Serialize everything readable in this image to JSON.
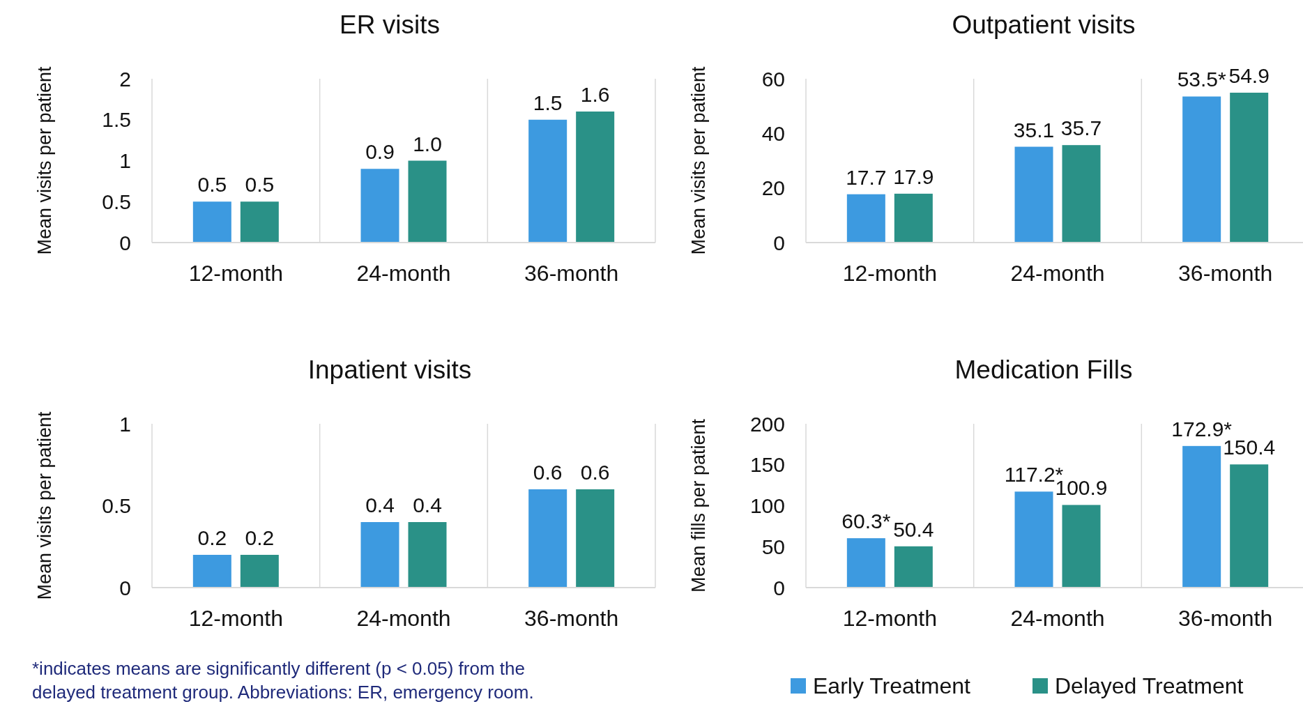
{
  "chart_data": [
    {
      "type": "bar",
      "title": "ER visits",
      "ylabel": "Mean visits per patient",
      "categories": [
        "12-month",
        "24-month",
        "36-month"
      ],
      "ylim": [
        0,
        2
      ],
      "yticks": [
        0,
        0.5,
        1,
        1.5,
        2
      ],
      "grid": "x",
      "series": [
        {
          "color": "#3d9ae0",
          "values": [
            0.5,
            0.9,
            1.5
          ]
        },
        {
          "color": "#2a9187",
          "values": [
            0.5,
            1.0,
            1.6
          ],
          "value_labels": [
            "0.5",
            "1.0",
            "1.6"
          ]
        }
      ],
      "data_labels": true
    },
    {
      "type": "bar",
      "title": "Outpatient visits",
      "ylabel": "Mean visits per patient",
      "categories": [
        "12-month",
        "24-month",
        "36-month"
      ],
      "ylim": [
        0,
        60
      ],
      "yticks": [
        0,
        20,
        40,
        60
      ],
      "grid": "x",
      "series": [
        {
          "color": "#3d9ae0",
          "values": [
            17.7,
            35.1,
            53.5
          ],
          "value_labels": [
            "17.7",
            "35.1",
            "53.5*"
          ]
        },
        {
          "color": "#2a9187",
          "values": [
            17.9,
            35.7,
            54.9
          ]
        }
      ],
      "data_labels": true
    },
    {
      "type": "bar",
      "title": "Inpatient visits",
      "ylabel": "Mean visits per patient",
      "categories": [
        "12-month",
        "24-month",
        "36-month"
      ],
      "ylim": [
        0,
        1
      ],
      "yticks": [
        0,
        0.5,
        1
      ],
      "grid": "x",
      "series": [
        {
          "color": "#3d9ae0",
          "values": [
            0.2,
            0.4,
            0.6
          ]
        },
        {
          "color": "#2a9187",
          "values": [
            0.2,
            0.4,
            0.6
          ]
        }
      ],
      "data_labels": true,
      "annotations": [
        "*indicates means are significantly different (p < 0.05) from the delayed treatment group. Abbreviations: ER, emergency room."
      ]
    },
    {
      "type": "bar",
      "title": "Medication Fills",
      "ylabel": "Mean fills per patient",
      "categories": [
        "12-month",
        "24-month",
        "36-month"
      ],
      "ylim": [
        0,
        200
      ],
      "yticks": [
        0,
        50,
        100,
        150,
        200
      ],
      "grid": "x",
      "series": [
        {
          "name": "Early Treatment",
          "color": "#3d9ae0",
          "values": [
            60.3,
            117.2,
            172.9
          ],
          "value_labels": [
            "60.3*",
            "117.2*",
            "172.9*"
          ]
        },
        {
          "name": "Delayed Treatment",
          "color": "#2a9187",
          "values": [
            50.4,
            100.9,
            150.4
          ]
        }
      ],
      "data_labels": true,
      "legend": "bottom"
    }
  ]
}
